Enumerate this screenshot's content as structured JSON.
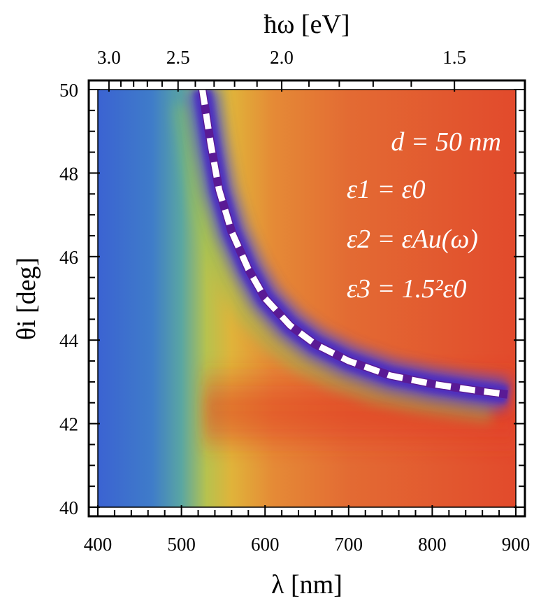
{
  "chart_data": {
    "type": "heatmap",
    "x": {
      "label": "λ [nm]",
      "range": [
        400,
        900
      ],
      "ticks": [
        400,
        500,
        600,
        700,
        800,
        900
      ],
      "tick_labels": [
        "400",
        "500",
        "600",
        "700",
        "800",
        "900"
      ]
    },
    "y": {
      "label": "θi [deg]",
      "range": [
        40,
        50
      ],
      "ticks": [
        40,
        42,
        44,
        46,
        48,
        50
      ],
      "tick_labels": [
        "40",
        "42",
        "44",
        "46",
        "48",
        "50"
      ]
    },
    "x_top": {
      "label": "ħω [eV]",
      "ticks": [
        3.0,
        2.5,
        2.0,
        1.5
      ],
      "tick_labels": [
        "3.0",
        "2.5",
        "2.0",
        "1.5"
      ]
    },
    "annotations": [
      "d = 50 nm",
      "ε1 = ε0",
      "ε2 = εAu(ω)",
      "ε3 = 1.5²ε0"
    ],
    "resonance_curve": {
      "style": "white dashed",
      "points": [
        [
          525,
          50.0
        ],
        [
          535,
          48.7
        ],
        [
          545,
          47.6
        ],
        [
          560,
          46.6
        ],
        [
          580,
          45.7
        ],
        [
          600,
          45.0
        ],
        [
          630,
          44.35
        ],
        [
          660,
          43.9
        ],
        [
          700,
          43.5
        ],
        [
          750,
          43.15
        ],
        [
          800,
          42.95
        ],
        [
          850,
          42.8
        ],
        [
          890,
          42.7
        ]
      ]
    },
    "colormap": "blue-green-yellow-orange-red"
  }
}
